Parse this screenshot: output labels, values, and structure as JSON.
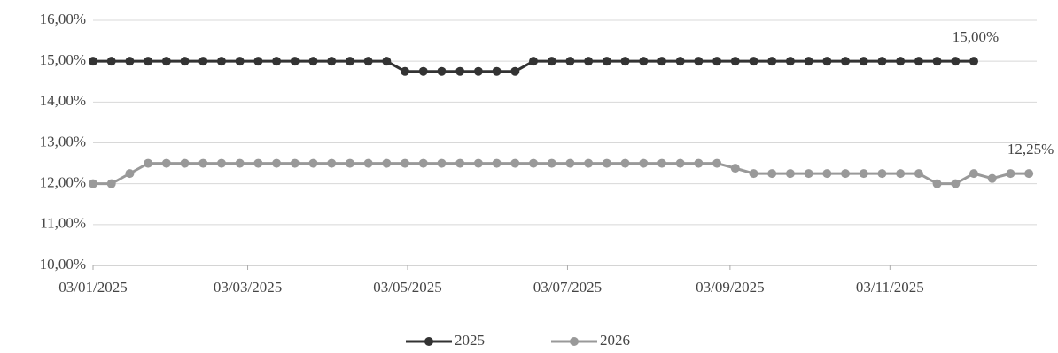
{
  "chart_data": {
    "type": "line",
    "x": [
      "03/01/2025",
      "10/01/2025",
      "17/01/2025",
      "24/01/2025",
      "31/01/2025",
      "07/02/2025",
      "14/02/2025",
      "21/02/2025",
      "28/02/2025",
      "07/03/2025",
      "14/03/2025",
      "21/03/2025",
      "28/03/2025",
      "04/04/2025",
      "11/04/2025",
      "18/04/2025",
      "25/04/2025",
      "02/05/2025",
      "09/05/2025",
      "16/05/2025",
      "23/05/2025",
      "30/05/2025",
      "06/06/2025",
      "13/06/2025",
      "20/06/2025",
      "27/06/2025",
      "04/07/2025",
      "11/07/2025",
      "18/07/2025",
      "25/07/2025",
      "01/08/2025",
      "08/08/2025",
      "15/08/2025",
      "22/08/2025",
      "29/08/2025",
      "05/09/2025",
      "12/09/2025",
      "19/09/2025",
      "26/09/2025",
      "03/10/2025",
      "10/10/2025",
      "17/10/2025",
      "24/10/2025",
      "31/10/2025",
      "07/11/2025",
      "14/11/2025",
      "21/11/2025",
      "28/11/2025",
      "05/12/2025",
      "12/12/2025",
      "19/12/2025",
      "26/12/2025"
    ],
    "series": [
      {
        "name": "2025",
        "color": "#333333",
        "values": [
          15,
          15,
          15,
          15,
          15,
          15,
          15,
          15,
          15,
          15,
          15,
          15,
          15,
          15,
          15,
          15,
          15,
          14.75,
          14.75,
          14.75,
          14.75,
          14.75,
          14.75,
          14.75,
          15,
          15,
          15,
          15,
          15,
          15,
          15,
          15,
          15,
          15,
          15,
          15,
          15,
          15,
          15,
          15,
          15,
          15,
          15,
          15,
          15,
          15,
          15,
          15,
          15,
          null,
          null,
          null
        ],
        "value_labels": [
          null,
          null,
          null,
          null,
          null,
          null,
          null,
          null,
          null,
          null,
          null,
          null,
          null,
          null,
          null,
          null,
          null,
          null,
          null,
          null,
          null,
          null,
          null,
          null,
          null,
          null,
          null,
          null,
          null,
          null,
          null,
          null,
          null,
          null,
          null,
          null,
          null,
          null,
          null,
          null,
          null,
          null,
          null,
          null,
          null,
          null,
          null,
          null,
          "15,00%",
          null,
          null,
          null
        ]
      },
      {
        "name": "2026",
        "color": "#999999",
        "values": [
          12,
          12,
          12.25,
          12.5,
          12.5,
          12.5,
          12.5,
          12.5,
          12.5,
          12.5,
          12.5,
          12.5,
          12.5,
          12.5,
          12.5,
          12.5,
          12.5,
          12.5,
          12.5,
          12.5,
          12.5,
          12.5,
          12.5,
          12.5,
          12.5,
          12.5,
          12.5,
          12.5,
          12.5,
          12.5,
          12.5,
          12.5,
          12.5,
          12.5,
          12.5,
          12.38,
          12.25,
          12.25,
          12.25,
          12.25,
          12.25,
          12.25,
          12.25,
          12.25,
          12.25,
          12.25,
          12,
          12,
          12.25,
          12.13,
          12.25,
          12.25
        ],
        "value_labels": [
          null,
          null,
          null,
          null,
          null,
          null,
          null,
          null,
          null,
          null,
          null,
          null,
          null,
          null,
          null,
          null,
          null,
          null,
          null,
          null,
          null,
          null,
          null,
          null,
          null,
          null,
          null,
          null,
          null,
          null,
          null,
          null,
          null,
          null,
          null,
          null,
          null,
          null,
          null,
          null,
          null,
          null,
          null,
          null,
          null,
          null,
          null,
          null,
          null,
          null,
          null,
          "12,25%"
        ]
      }
    ],
    "xlim": [
      "03/01/2025",
      "29/12/2025"
    ],
    "xticks": [
      "03/01/2025",
      "03/03/2025",
      "03/05/2025",
      "03/07/2025",
      "03/09/2025",
      "03/11/2025"
    ],
    "ylim": [
      10,
      16
    ],
    "yticks": [
      {
        "value": 10,
        "label": "10,00%"
      },
      {
        "value": 11,
        "label": "11,00%"
      },
      {
        "value": 12,
        "label": "12,00%"
      },
      {
        "value": 13,
        "label": "13,00%"
      },
      {
        "value": 14,
        "label": "14,00%"
      },
      {
        "value": 15,
        "label": "15,00%"
      },
      {
        "value": 16,
        "label": "16,00%"
      }
    ],
    "grid": true,
    "legend": "bottom"
  }
}
